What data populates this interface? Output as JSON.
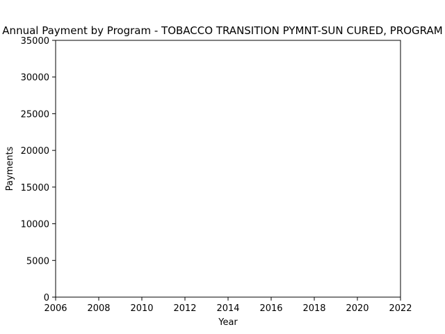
{
  "chart_data": {
    "type": "line",
    "title": "Annual Payment by Program - TOBACCO TRANSITION PYMNT-SUN CURED, PROGRAM",
    "xlabel": "Year",
    "ylabel": "Payments",
    "xlim": [
      2006,
      2022
    ],
    "ylim": [
      0,
      35000
    ],
    "x_ticks": [
      2006,
      2008,
      2010,
      2012,
      2014,
      2016,
      2018,
      2020,
      2022
    ],
    "y_ticks": [
      0,
      5000,
      10000,
      15000,
      20000,
      25000,
      30000,
      35000
    ],
    "series": [],
    "grid": false,
    "legend": false
  },
  "colors": {
    "axis": "#000000",
    "background": "#ffffff"
  }
}
